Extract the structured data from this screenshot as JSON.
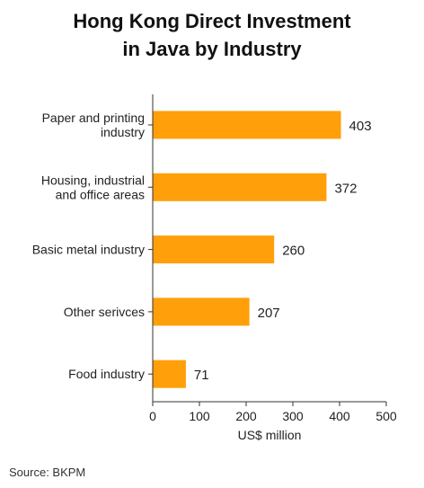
{
  "chart_data": {
    "type": "bar",
    "orientation": "horizontal",
    "title": [
      "Hong Kong Direct Investment",
      "in Java by Industry"
    ],
    "categories": [
      [
        "Paper and printing",
        "industry"
      ],
      [
        "Housing, industrial",
        "and office areas"
      ],
      [
        "Basic metal industry"
      ],
      [
        "Other serivces"
      ],
      [
        "Food industry"
      ]
    ],
    "values": [
      403,
      372,
      260,
      207,
      71
    ],
    "data_labels": [
      "403",
      "372",
      "260",
      "207",
      "71"
    ],
    "xlabel": "US$ million",
    "xlim": [
      0,
      500
    ],
    "xticks": [
      0,
      100,
      200,
      300,
      400,
      500
    ],
    "bar_color": "#ff9f0a",
    "grid": false,
    "legend": "none"
  },
  "footer": {
    "source": "Source: BKPM"
  }
}
